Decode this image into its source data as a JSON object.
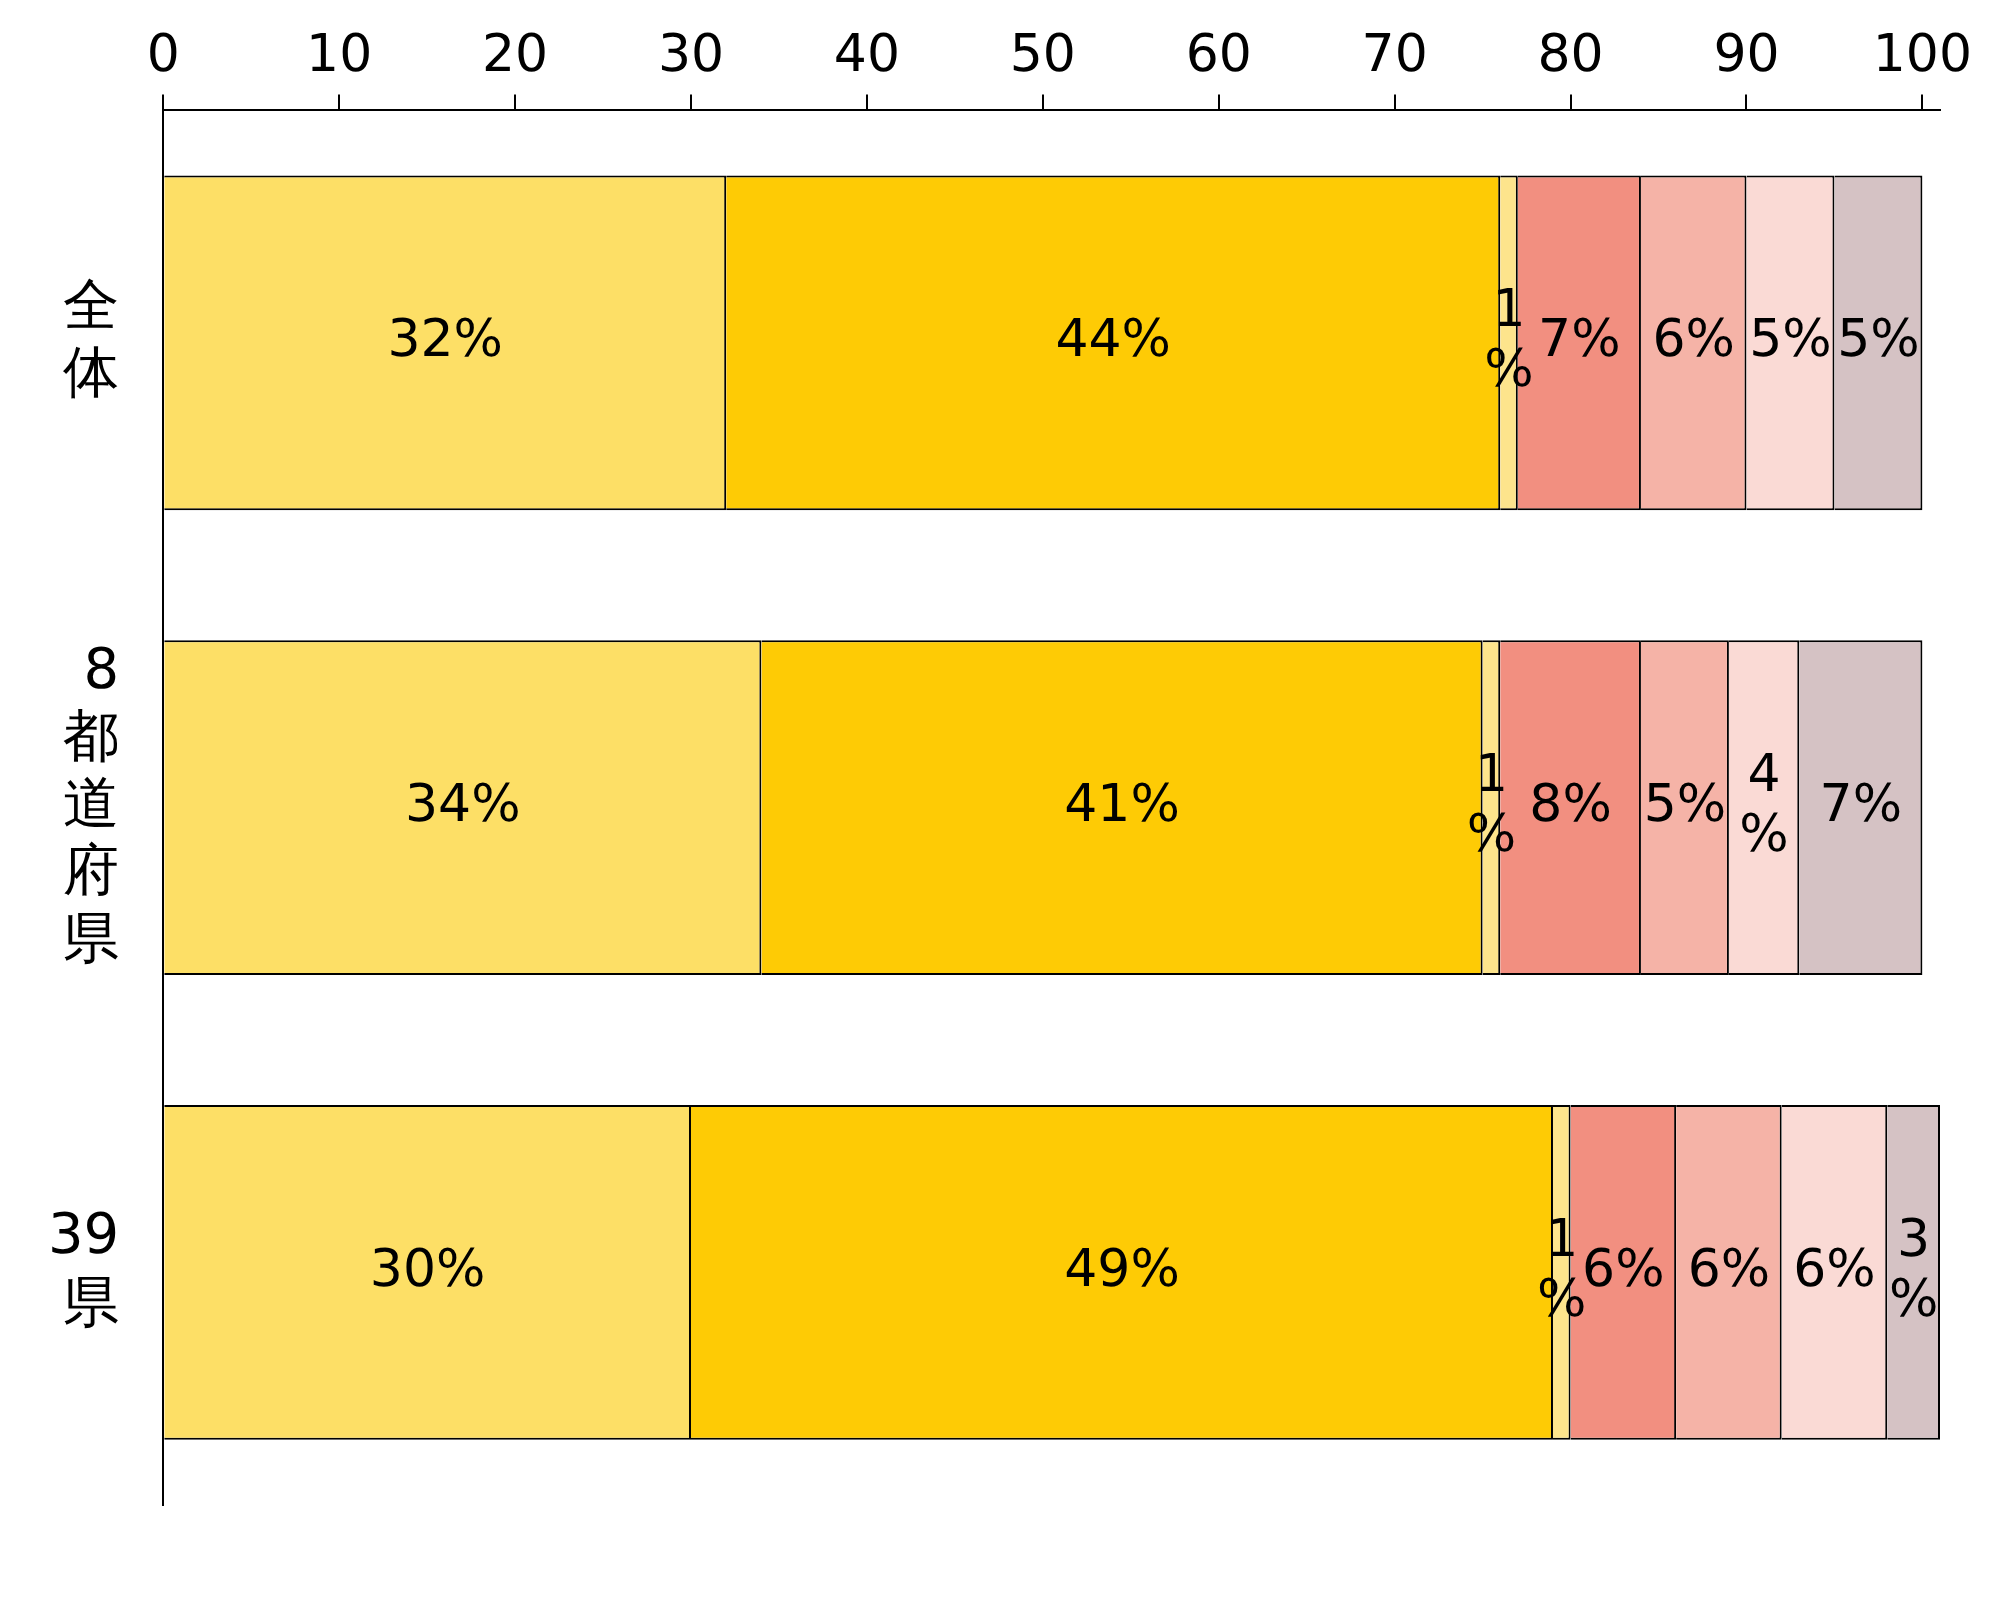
{
  "chart_data": {
    "type": "bar",
    "orientation": "horizontal",
    "stacked": true,
    "categories": [
      "全体",
      "8都道府県",
      "39県"
    ],
    "xlim": [
      0,
      101
    ],
    "xticks": [
      0,
      10,
      20,
      30,
      40,
      50,
      60,
      70,
      80,
      90,
      100
    ],
    "grid": false,
    "legend": false,
    "series": [
      {
        "color": "#fddf66",
        "values": [
          32,
          34,
          30
        ],
        "value_labels": [
          "32%",
          "34%",
          "30%"
        ]
      },
      {
        "color": "#fecb05",
        "values": [
          44,
          41,
          49
        ],
        "value_labels": [
          "44%",
          "41%",
          "49%"
        ]
      },
      {
        "color": "#fde48c",
        "values": [
          1,
          1,
          1
        ],
        "value_labels": [
          "1%",
          "1%",
          "1%"
        ]
      },
      {
        "color": "#f28f80",
        "values": [
          7,
          8,
          6
        ],
        "value_labels": [
          "7%",
          "8%",
          "6%"
        ]
      },
      {
        "color": "#f5b3a7",
        "values": [
          6,
          5,
          6
        ],
        "value_labels": [
          "6%",
          "5%",
          "6%"
        ]
      },
      {
        "color": "#fadad5",
        "values": [
          5,
          4,
          6
        ],
        "value_labels": [
          "5%",
          "4%",
          "6%"
        ]
      },
      {
        "color": "#d5c2c4",
        "values": [
          5,
          7,
          3
        ],
        "value_labels": [
          "5%",
          "7%",
          "3%"
        ]
      }
    ]
  }
}
